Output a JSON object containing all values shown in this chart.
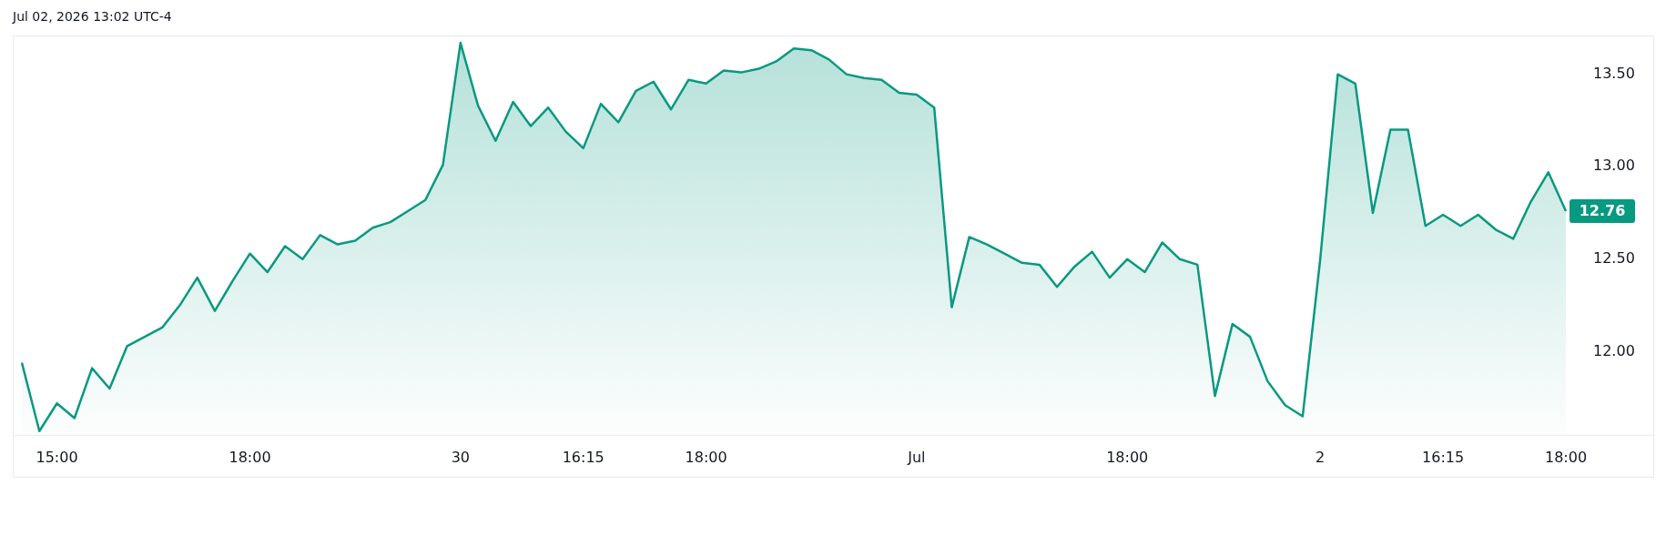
{
  "chart_data": {
    "type": "area",
    "annotations": [
      "Jul 02, 2026 13:02 UTC-4",
      "12.76"
    ],
    "categories": [
      null,
      null,
      "15:00",
      null,
      null,
      null,
      null,
      null,
      null,
      null,
      null,
      null,
      null,
      "18:00",
      null,
      null,
      null,
      null,
      null,
      null,
      null,
      null,
      null,
      null,
      null,
      "30",
      null,
      null,
      null,
      null,
      null,
      null,
      "16:15",
      null,
      null,
      null,
      null,
      null,
      null,
      "18:00",
      null,
      null,
      null,
      null,
      null,
      null,
      null,
      null,
      null,
      null,
      null,
      "Jul",
      null,
      null,
      null,
      null,
      null,
      null,
      null,
      null,
      null,
      null,
      null,
      "18:00",
      null,
      null,
      null,
      null,
      null,
      null,
      null,
      null,
      null,
      null,
      "2",
      null,
      null,
      null,
      null,
      null,
      null,
      "16:15",
      null,
      null,
      null,
      null,
      null,
      null,
      "18:00"
    ],
    "series": [
      {
        "color": "#089981",
        "values": [
          11.94,
          11.57,
          11.72,
          11.64,
          11.91,
          11.8,
          12.03,
          12.08,
          12.13,
          12.25,
          12.4,
          12.22,
          12.38,
          12.53,
          12.43,
          12.57,
          12.5,
          12.63,
          12.58,
          12.6,
          12.67,
          12.7,
          12.76,
          12.82,
          13.01,
          13.67,
          13.33,
          13.14,
          13.35,
          13.22,
          13.32,
          13.19,
          13.1,
          13.34,
          13.24,
          13.41,
          13.46,
          13.31,
          13.47,
          13.45,
          13.52,
          13.51,
          13.53,
          13.57,
          13.64,
          13.63,
          13.58,
          13.5,
          13.48,
          13.47,
          13.4,
          13.39,
          13.32,
          12.24,
          12.62,
          12.58,
          12.53,
          12.48,
          12.47,
          12.35,
          12.46,
          12.54,
          12.4,
          12.5,
          12.43,
          12.59,
          12.5,
          12.47,
          11.76,
          12.15,
          12.08,
          11.84,
          11.71,
          11.65,
          12.5,
          13.5,
          13.45,
          12.75,
          13.2,
          13.2,
          12.68,
          12.74,
          12.68,
          12.74,
          12.66,
          12.61,
          12.81,
          12.97,
          12.76
        ]
      }
    ],
    "ylim": [
      11.55,
      13.7
    ],
    "yticks": [
      {
        "value": 12,
        "label": "12.00"
      },
      {
        "value": 12.5,
        "label": "12.50"
      },
      {
        "value": 13,
        "label": "13.00"
      },
      {
        "value": 13.5,
        "label": "13.50"
      }
    ],
    "marker": "none"
  }
}
